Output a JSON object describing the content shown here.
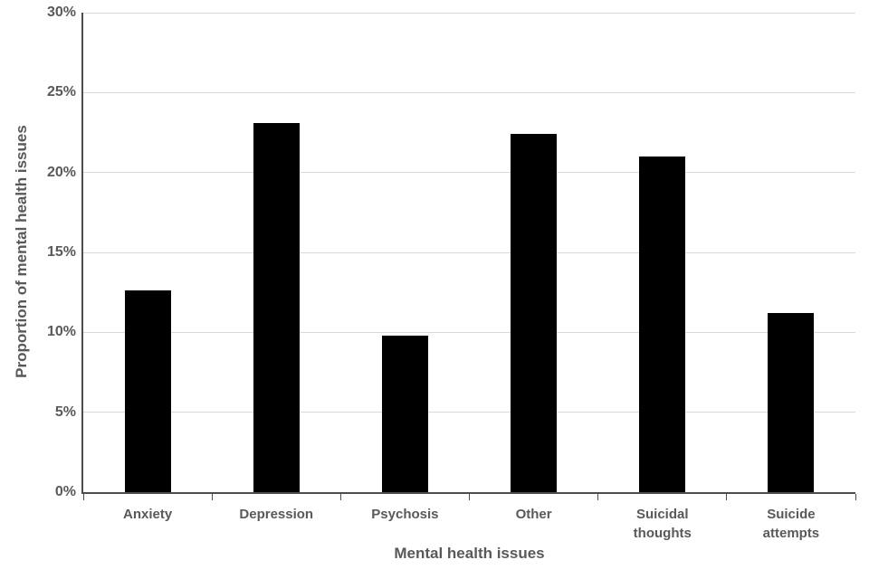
{
  "chart_data": {
    "type": "bar",
    "title": "",
    "categories": [
      "Anxiety",
      "Depression",
      "Psychosis",
      "Other",
      "Suicidal thoughts",
      "Suicide attempts"
    ],
    "values": [
      12.6,
      23.1,
      9.8,
      22.4,
      21.0,
      11.2
    ],
    "xlabel": "Mental health issues",
    "ylabel": "Proportion of mental health issues",
    "ylim": [
      0,
      30
    ],
    "ytick_step": 5,
    "ytick_labels": [
      "0%",
      "5%",
      "10%",
      "15%",
      "20%",
      "25%",
      "30%"
    ],
    "legend_position": "none",
    "grid": "horizontal",
    "colors": {
      "bar": "#000000",
      "gridline": "#d9d9d9",
      "axis": "#4d4d4d",
      "text": "#595959",
      "background": "#ffffff"
    }
  }
}
